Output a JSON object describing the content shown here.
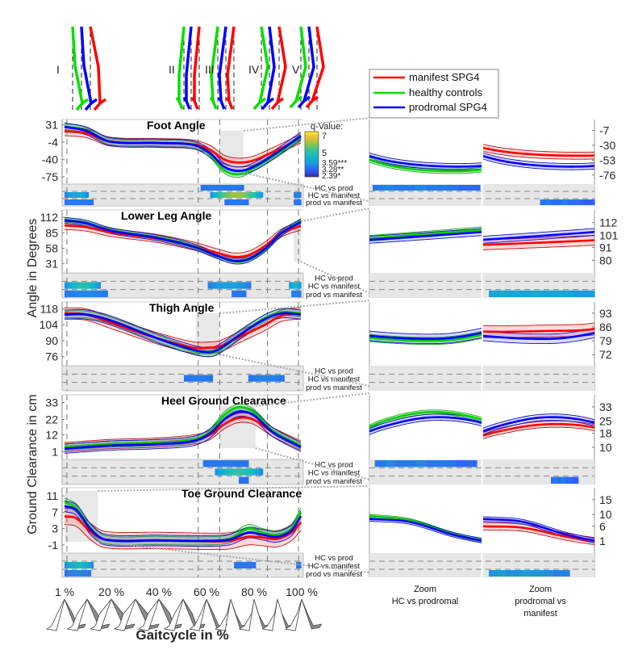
{
  "chart_data": {
    "type": "line",
    "xlabel": "Gaitcycle in %",
    "x_ticks": [
      "1 %",
      "20 %",
      "40 %",
      "60 %",
      "80 %",
      "100 %"
    ],
    "x_range": [
      1,
      100
    ],
    "ylabels": [
      {
        "text": "Angle in Degrees",
        "panels": [
          0,
          1,
          2
        ]
      },
      {
        "text": "Ground Clearance in cm",
        "panels": [
          3,
          4
        ]
      }
    ],
    "phase_labels": [
      "I",
      "II",
      "III",
      "IV",
      "V"
    ],
    "phase_positions_pct": [
      2,
      57,
      66,
      86,
      99
    ],
    "legend": {
      "placement": "top-right",
      "entries": [
        {
          "name": "manifest SPG4",
          "color": "#ff0000"
        },
        {
          "name": "healthy controls",
          "color": "#00e000"
        },
        {
          "name": "prodromal SPG4",
          "color": "#0000ff"
        }
      ]
    },
    "colorbar": {
      "title": "q-Value:",
      "range": [
        2.39,
        7
      ],
      "tick_labels": [
        "7",
        "5",
        "3.59***",
        "3.28**",
        "2.39*"
      ],
      "tick_values": [
        7,
        5,
        3.59,
        3.28,
        2.39
      ]
    },
    "comparison_labels": [
      "HC vs prod",
      "HC vs manifest",
      "prod vs manifest"
    ],
    "zoom_labels": [
      {
        "line1": "Zoom",
        "line2": "HC vs prodromal",
        "line3": ""
      },
      {
        "line1": "Zoom",
        "line2": "prodromal vs",
        "line3": "manifest"
      }
    ],
    "panels": [
      {
        "title": "Foot Angle",
        "yticks": [
          31,
          -4,
          -40,
          -75
        ],
        "ylim": [
          -90,
          42
        ],
        "zoom_window_pct": [
          66,
          76
        ],
        "zoom_yticks": [
          -7,
          -30,
          -53,
          -76
        ],
        "zoom_ylim": [
          -85,
          5
        ],
        "x": [
          1,
          10,
          20,
          40,
          55,
          62,
          68,
          74,
          80,
          88,
          100
        ],
        "series": [
          {
            "name": "healthy controls",
            "mean": [
              28,
              20,
              -3,
              -6,
              -10,
              -30,
              -62,
              -70,
              -58,
              -35,
              5
            ],
            "sd": 6
          },
          {
            "name": "prodromal SPG4",
            "mean": [
              27,
              19,
              -3,
              -6,
              -10,
              -27,
              -55,
              -63,
              -55,
              -32,
              8
            ],
            "sd": 8
          },
          {
            "name": "manifest SPG4",
            "mean": [
              18,
              14,
              -3,
              -6,
              -9,
              -20,
              -40,
              -46,
              -42,
              -25,
              3
            ],
            "sd": 9
          }
        ],
        "significance": [
          {
            "comparison": "HC vs prod",
            "segments": [
              [
                58,
                76,
                3.4
              ]
            ]
          },
          {
            "comparison": "HC vs manifest",
            "segments": [
              [
                1,
                11,
                4.2
              ],
              [
                62,
                84,
                5.8
              ],
              [
                97,
                100,
                3.5
              ]
            ]
          },
          {
            "comparison": "prod vs manifest",
            "segments": [
              [
                1,
                13,
                3.5
              ],
              [
                68,
                78,
                3.4
              ],
              [
                97,
                100,
                3.4
              ]
            ]
          }
        ],
        "zoom_significance": {
          "left": [
            {
              "comparison": "HC vs prod",
              "segments": [
                [
                  0,
                  1,
                  3.4
                ]
              ]
            }
          ],
          "right": [
            {
              "comparison": "prod vs manifest",
              "segments": [
                [
                  0.5,
                  1,
                  3.3
                ]
              ]
            }
          ]
        }
      },
      {
        "title": "Lower Leg Angle",
        "yticks": [
          112,
          85,
          58,
          31
        ],
        "ylim": [
          15,
          125
        ],
        "zoom_window_pct": [
          97,
          100
        ],
        "zoom_yticks": [
          112,
          101,
          91,
          80
        ],
        "zoom_ylim": [
          72,
          120
        ],
        "x": [
          1,
          10,
          20,
          40,
          55,
          65,
          72,
          78,
          85,
          92,
          100
        ],
        "series": [
          {
            "name": "healthy controls",
            "mean": [
              108,
              103,
              90,
              77,
              62,
              45,
              35,
              38,
              56,
              85,
              106
            ],
            "sd": 4
          },
          {
            "name": "prodromal SPG4",
            "mean": [
              107,
              102,
              89,
              76,
              61,
              45,
              36,
              39,
              57,
              85,
              104
            ],
            "sd": 5
          },
          {
            "name": "manifest SPG4",
            "mean": [
              98,
              95,
              86,
              75,
              62,
              50,
              43,
              46,
              62,
              85,
              97
            ],
            "sd": 7
          }
        ],
        "significance": [
          {
            "comparison": "HC vs prod",
            "segments": []
          },
          {
            "comparison": "HC vs manifest",
            "segments": [
              [
                1,
                16,
                4.8
              ],
              [
                61,
                79,
                3.9
              ],
              [
                95,
                100,
                4.4
              ]
            ]
          },
          {
            "comparison": "prod vs manifest",
            "segments": [
              [
                1,
                19,
                3.6
              ],
              [
                71,
                77,
                3.4
              ],
              [
                96,
                100,
                3.5
              ]
            ]
          }
        ],
        "zoom_significance": {
          "left": [],
          "right": [
            {
              "comparison": "prod vs manifest",
              "segments": [
                [
                  0.03,
                  1,
                  4.0
                ]
              ]
            }
          ]
        }
      },
      {
        "title": "Thigh Angle",
        "yticks": [
          118,
          104,
          90,
          76
        ],
        "ylim": [
          68,
          124
        ],
        "zoom_window_pct": [
          56,
          66
        ],
        "zoom_yticks": [
          93,
          86,
          79,
          72
        ],
        "zoom_ylim": [
          68,
          97
        ],
        "x": [
          1,
          10,
          20,
          40,
          55,
          62,
          66,
          75,
          85,
          92,
          100
        ],
        "series": [
          {
            "name": "healthy controls",
            "mean": [
              113,
              113,
              108,
              92,
              81,
              79,
              82,
              96,
              110,
              115,
              114
            ],
            "sd": 3
          },
          {
            "name": "prodromal SPG4",
            "mean": [
              113,
              113,
              108,
              92,
              82,
              80,
              83,
              96,
              109,
              114,
              113
            ],
            "sd": 4
          },
          {
            "name": "manifest SPG4",
            "mean": [
              114,
              113,
              106,
              92,
              84,
              84,
              85,
              94,
              104,
              112,
              114
            ],
            "sd": 5
          }
        ],
        "significance": [
          {
            "comparison": "HC vs prod",
            "segments": []
          },
          {
            "comparison": "HC vs manifest",
            "segments": [
              [
                51,
                63,
                3.4
              ],
              [
                78,
                93,
                3.5
              ]
            ]
          },
          {
            "comparison": "prod vs manifest",
            "segments": []
          }
        ],
        "zoom_significance": {
          "left": [],
          "right": []
        }
      },
      {
        "title": "Heel Ground Clearance",
        "yticks": [
          33,
          22,
          12,
          1
        ],
        "ylim": [
          -4,
          38
        ],
        "zoom_window_pct": [
          66,
          81
        ],
        "zoom_yticks": [
          33,
          25,
          18,
          10
        ],
        "zoom_ylim": [
          5,
          38
        ],
        "x": [
          1,
          10,
          20,
          40,
          55,
          62,
          68,
          74,
          80,
          88,
          100
        ],
        "series": [
          {
            "name": "healthy controls",
            "mean": [
              4,
              5,
              6,
              7,
              9,
              14,
              25,
              30,
              27,
              15,
              5
            ],
            "sd": 2
          },
          {
            "name": "prodromal SPG4",
            "mean": [
              3,
              4,
              5,
              6,
              8,
              13,
              22,
              27,
              25,
              14,
              4
            ],
            "sd": 3
          },
          {
            "name": "manifest SPG4",
            "mean": [
              4,
              5,
              6,
              7,
              9,
              12,
              19,
              23,
              22,
              14,
              5
            ],
            "sd": 3
          }
        ],
        "significance": [
          {
            "comparison": "HC vs prod",
            "segments": [
              [
                59,
                78,
                3.4
              ]
            ]
          },
          {
            "comparison": "HC vs manifest",
            "segments": [
              [
                64,
                84,
                4.9
              ]
            ]
          },
          {
            "comparison": "prod vs manifest",
            "segments": [
              [
                74,
                78,
                3.3
              ]
            ]
          }
        ],
        "zoom_significance": {
          "left": [
            {
              "comparison": "HC vs prod",
              "segments": [
                [
                  0.02,
                  0.97,
                  3.4
                ]
              ]
            }
          ],
          "right": [
            {
              "comparison": "prod vs manifest",
              "segments": [
                [
                  0.6,
                  0.85,
                  3.3
                ]
              ]
            }
          ]
        }
      },
      {
        "title": "Toe Ground Clearance",
        "yticks": [
          11,
          7,
          3,
          -1
        ],
        "ylim": [
          -3,
          13
        ],
        "zoom_window_pct": [
          1,
          15
        ],
        "zoom_yticks": [
          15,
          10,
          6,
          1
        ],
        "zoom_ylim": [
          -2,
          18
        ],
        "x": [
          1,
          6,
          12,
          18,
          40,
          60,
          70,
          78,
          84,
          90,
          96,
          100
        ],
        "series": [
          {
            "name": "healthy controls",
            "mean": [
              9.5,
              8,
              3,
              0.3,
              0.1,
              0,
              0.5,
              3,
              2,
              1.5,
              3,
              7
            ],
            "sd": 1
          },
          {
            "name": "prodromal SPG4",
            "mean": [
              8.5,
              7.5,
              2.8,
              0.3,
              0.1,
              0,
              0.3,
              2,
              1.5,
              1,
              2.5,
              6
            ],
            "sd": 1.3
          },
          {
            "name": "manifest SPG4",
            "mean": [
              6,
              5.5,
              2.2,
              0.3,
              0.1,
              -0.1,
              0,
              1,
              0.8,
              0.5,
              2,
              4.5
            ],
            "sd": 2
          }
        ],
        "significance": [
          {
            "comparison": "HC vs prod",
            "segments": []
          },
          {
            "comparison": "HC vs manifest",
            "segments": [
              [
                1,
                13,
                4.6
              ],
              [
                72,
                81,
                3.4
              ],
              [
                98,
                100,
                3.4
              ]
            ]
          },
          {
            "comparison": "prod vs manifest",
            "segments": [
              [
                1,
                12,
                3.6
              ]
            ]
          }
        ],
        "zoom_significance": {
          "left": [],
          "right": [
            {
              "comparison": "prod vs manifest",
              "segments": [
                [
                  0.03,
                  0.77,
                  3.7
                ]
              ]
            }
          ]
        }
      }
    ]
  }
}
